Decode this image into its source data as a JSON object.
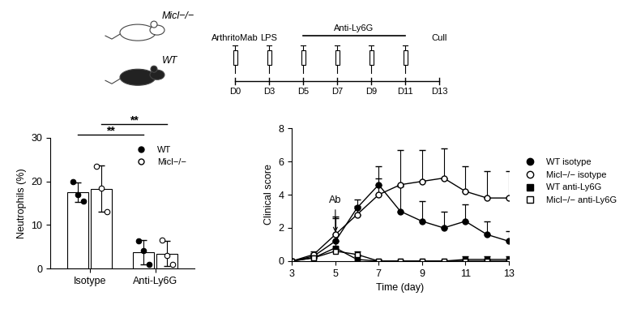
{
  "schematic": {
    "genotypes": [
      "Micl−/−",
      "WT"
    ],
    "days": [
      "D0",
      "D3",
      "D5",
      "D7",
      "D9",
      "D11",
      "D13"
    ],
    "injections": [
      "D0",
      "D3",
      "D5",
      "D7",
      "D9",
      "D11"
    ],
    "events": [
      {
        "label": "ArthritoMab",
        "day": "D0"
      },
      {
        "label": "LPS",
        "day": "D3"
      },
      {
        "label": "Cull",
        "day": "D13"
      }
    ],
    "treatment_span": {
      "label": "Anti-Ly6G",
      "from": "D5",
      "to": "D11"
    }
  },
  "chart_data": [
    {
      "type": "bar",
      "y_label": "Neutrophils (%)",
      "categories": [
        "Isotype",
        "Anti-Ly6G"
      ],
      "ylim": [
        0,
        30
      ],
      "yticks": [
        0,
        10,
        20,
        30
      ],
      "legend": "upper right",
      "series": [
        {
          "name": "WT",
          "color": "#000000",
          "marker": "circle",
          "values": [
            17.5,
            3.8
          ],
          "error": [
            2.3,
            2.8
          ],
          "points": [
            [
              20,
              17,
              15.5
            ],
            [
              6.3,
              4.2,
              1.0
            ]
          ]
        },
        {
          "name": "Micl−/−",
          "color": "#000000",
          "marker": "open_circle",
          "values": [
            18.3,
            3.5
          ],
          "error": [
            5.3,
            2.9
          ],
          "points": [
            [
              23.5,
              18.5,
              13
            ],
            [
              6.5,
              3.0,
              1.0
            ]
          ]
        }
      ],
      "significance": [
        {
          "label": "**",
          "from": {
            "category": "Isotype",
            "series": "WT"
          },
          "to": {
            "category": "Anti-Ly6G",
            "series": "WT"
          }
        },
        {
          "label": "**",
          "from": {
            "category": "Isotype",
            "series": "Micl−/−"
          },
          "to": {
            "category": "Anti-Ly6G",
            "series": "Micl−/−"
          }
        }
      ]
    },
    {
      "type": "line",
      "x_label": "Time (day)",
      "y_label": "Clinical score",
      "x": [
        3,
        4,
        5,
        6,
        7,
        8,
        9,
        10,
        11,
        12,
        13
      ],
      "xlim": [
        3,
        13
      ],
      "xticks": [
        3,
        5,
        7,
        9,
        11,
        13
      ],
      "ylim": [
        0,
        8
      ],
      "yticks": [
        0,
        2,
        4,
        6,
        8
      ],
      "legend": "right",
      "annotations": [
        {
          "text": "Ab",
          "x": 5
        }
      ],
      "series": [
        {
          "name": "WT isotype",
          "color": "#000000",
          "marker": "circle",
          "values": [
            0,
            0.3,
            1.2,
            3.2,
            4.6,
            3.0,
            2.4,
            2.0,
            2.4,
            1.6,
            1.2
          ],
          "error": [
            0,
            0.2,
            1.4,
            0.5,
            1.1,
            1.5,
            1.2,
            1.0,
            1.0,
            0.8,
            0.6
          ]
        },
        {
          "name": "Micl−/− isotype",
          "color": "#000000",
          "marker": "open_circle",
          "values": [
            0,
            0.4,
            1.6,
            2.8,
            4.0,
            4.6,
            4.8,
            5.0,
            4.2,
            3.8,
            3.8
          ],
          "error": [
            0,
            0.2,
            1.1,
            0.5,
            1.0,
            2.1,
            1.9,
            1.8,
            1.5,
            1.6,
            1.6
          ]
        },
        {
          "name": "WT anti-Ly6G",
          "color": "#000000",
          "marker": "square",
          "values": [
            0,
            0.2,
            0.8,
            0.1,
            0,
            0,
            0,
            0,
            0.1,
            0.1,
            0.1
          ],
          "error": [
            0,
            0.2,
            0.4,
            0.2,
            0.1,
            0,
            0,
            0,
            0.2,
            0.2,
            0.2
          ]
        },
        {
          "name": "Micl−/− anti-Ly6G",
          "color": "#000000",
          "marker": "open_square",
          "values": [
            0,
            0.2,
            0.6,
            0.4,
            0,
            0,
            0,
            0,
            0,
            0,
            0
          ],
          "error": [
            0,
            0.1,
            0.3,
            0.2,
            0,
            0,
            0,
            0,
            0,
            0,
            0
          ]
        }
      ]
    }
  ]
}
